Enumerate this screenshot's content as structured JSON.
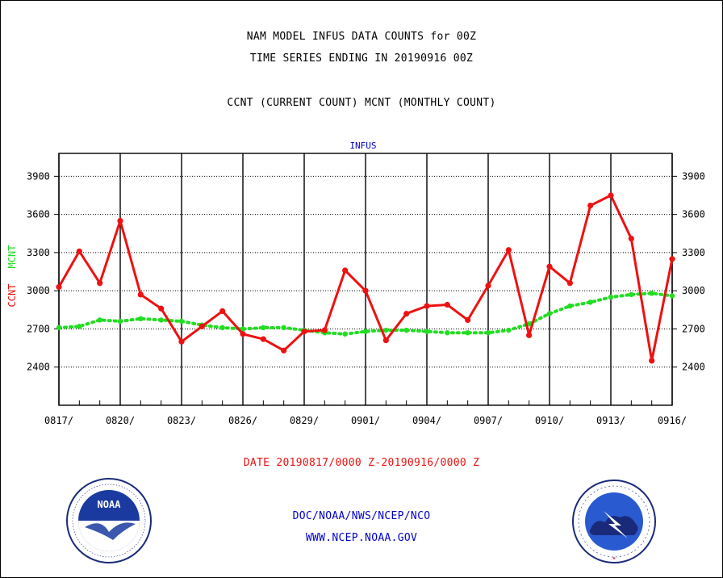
{
  "header": {
    "title_line1": "NAM MODEL INFUS DATA COUNTS for 00Z",
    "title_line2": "TIME SERIES ENDING IN 20190916 00Z",
    "subtitle": "CCNT (CURRENT COUNT) MCNT (MONTHLY COUNT)"
  },
  "footer": {
    "date_range": "DATE 20190817/0000 Z-20190916/0000 Z",
    "org": "DOC/NOAA/NWS/NCEP/NCO",
    "url": "WWW.NCEP.NOAA.GOV"
  },
  "logos": {
    "left_text": "NOAA",
    "right_text": "NATIONAL WEATHER SERVICE"
  },
  "colors": {
    "ccnt": "#ee1111",
    "mcnt": "#22dd22",
    "axis_label_blue": "#0000cc"
  },
  "chart_data": {
    "type": "line",
    "title": "INFUS",
    "ylabel_ccnt": "CCNT",
    "ylabel_mcnt": "MCNT",
    "ylim": [
      2100,
      4080
    ],
    "y_ticks": [
      2400,
      2700,
      3000,
      3300,
      3600,
      3900
    ],
    "x_tick_labels": [
      "0817/",
      "0820/",
      "0823/",
      "0826/",
      "0829/",
      "0901/",
      "0904/",
      "0907/",
      "0910/",
      "0913/",
      "0916/"
    ],
    "grid": true,
    "series": [
      {
        "name": "CCNT",
        "color": "#ee1111",
        "style": "solid",
        "values": [
          3030,
          3310,
          3060,
          3550,
          2970,
          2860,
          2600,
          2720,
          2840,
          2660,
          2620,
          2530,
          2680,
          2690,
          3160,
          3000,
          2610,
          2820,
          2880,
          2890,
          2770,
          3040,
          3320,
          2650,
          3190,
          3060,
          3670,
          3750,
          3410,
          2450,
          3250
        ]
      },
      {
        "name": "MCNT",
        "color": "#22dd22",
        "style": "dotted",
        "values": [
          2710,
          2720,
          2770,
          2760,
          2780,
          2770,
          2760,
          2730,
          2710,
          2700,
          2710,
          2710,
          2690,
          2670,
          2660,
          2680,
          2690,
          2690,
          2680,
          2670,
          2670,
          2670,
          2690,
          2740,
          2820,
          2880,
          2910,
          2950,
          2970,
          2980,
          2960
        ]
      }
    ]
  }
}
